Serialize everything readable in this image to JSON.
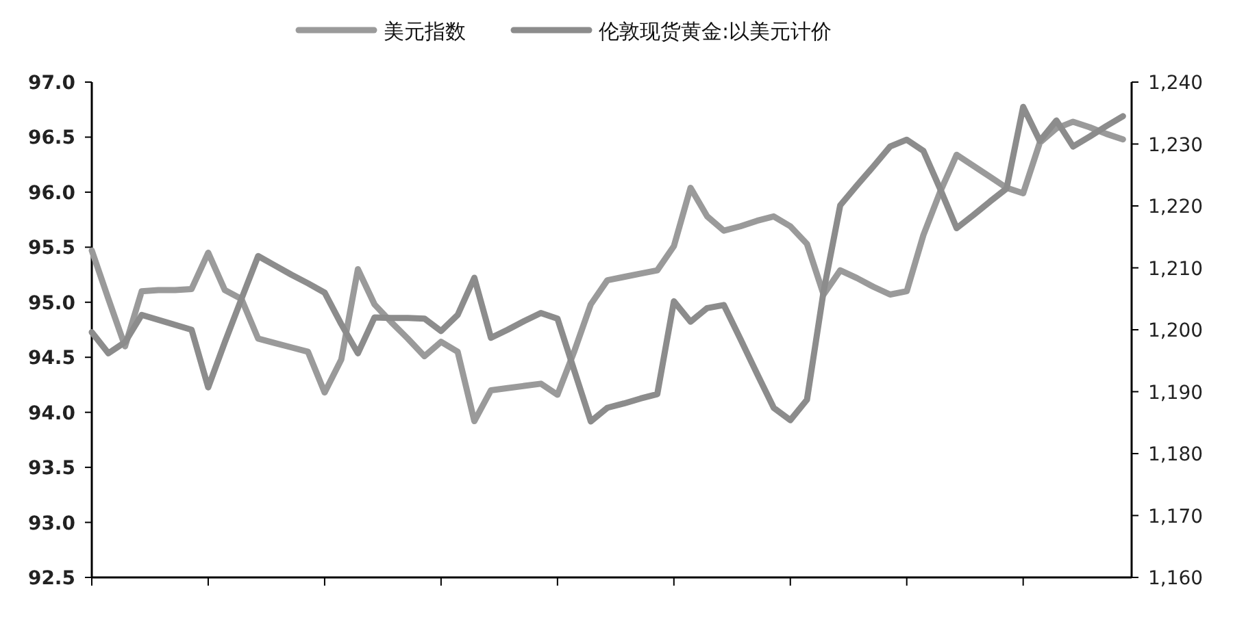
{
  "chart_data": {
    "type": "line",
    "legend": "top",
    "grid": false,
    "categories": [
      null,
      null,
      null,
      null,
      null,
      null,
      null,
      null,
      null,
      null,
      null,
      null,
      null,
      null,
      null,
      null,
      null,
      null,
      null,
      null,
      null,
      null,
      null,
      null,
      null,
      null,
      null,
      null,
      null,
      null,
      null,
      null,
      null,
      null,
      null,
      null,
      null,
      null,
      null,
      null,
      null,
      null,
      null,
      null,
      null,
      null,
      null,
      null,
      null,
      null,
      null,
      null,
      null,
      null,
      null,
      null,
      null,
      null,
      null,
      null,
      null,
      null,
      null
    ],
    "ylim": [
      92.5,
      97.0
    ],
    "yticks": [
      {
        "value": 92.5,
        "label": "92.5"
      },
      {
        "value": 93,
        "label": "93.0"
      },
      {
        "value": 93.5,
        "label": "93.5"
      },
      {
        "value": 94,
        "label": "94.0"
      },
      {
        "value": 94.5,
        "label": "94.5"
      },
      {
        "value": 95,
        "label": "95.0"
      },
      {
        "value": 95.5,
        "label": "95.5"
      },
      {
        "value": 96,
        "label": "96.0"
      },
      {
        "value": 96.5,
        "label": "96.5"
      },
      {
        "value": 97,
        "label": "97.0"
      }
    ],
    "y2lim": [
      1160,
      1240
    ],
    "y2ticks": [
      {
        "value": 1160,
        "label": "1,160"
      },
      {
        "value": 1170,
        "label": "1,170"
      },
      {
        "value": 1180,
        "label": "1,180"
      },
      {
        "value": 1190,
        "label": "1,190"
      },
      {
        "value": 1200,
        "label": "1,200"
      },
      {
        "value": 1210,
        "label": "1,210"
      },
      {
        "value": 1220,
        "label": "1,220"
      },
      {
        "value": 1230,
        "label": "1,230"
      },
      {
        "value": 1240,
        "label": "1,240"
      }
    ],
    "series": [
      {
        "name": "美元指数",
        "color": "#9a9a9a",
        "values": [
          95.47,
          95.03,
          94.6,
          95.1,
          95.11,
          95.11,
          95.12,
          95.45,
          95.11,
          95.03,
          94.67,
          94.63,
          94.59,
          94.55,
          94.18,
          94.48,
          95.3,
          94.98,
          94.82,
          94.67,
          94.51,
          94.64,
          94.55,
          93.92,
          94.2,
          94.22,
          94.24,
          94.26,
          94.16,
          94.55,
          94.98,
          95.2,
          95.23,
          95.26,
          95.29,
          95.51,
          96.04,
          95.78,
          95.65,
          95.69,
          95.74,
          95.78,
          95.69,
          95.53,
          95.07,
          95.29,
          95.22,
          95.14,
          95.07,
          95.1,
          95.61,
          96.0,
          96.34,
          96.24,
          96.14,
          96.04,
          95.99,
          96.45,
          96.58,
          96.64,
          96.59,
          96.53,
          96.48
        ]
      },
      {
        "name": "伦敦现货黄金:以美元计价",
        "color": "#8c8c8c",
        "axis": "y2",
        "values": [
          1199.6,
          1196.2,
          1198,
          1202.4,
          1201.6,
          1200.8,
          1200,
          1190.7,
          1198,
          1205,
          1211.9,
          1210.4,
          1208.9,
          1207.5,
          1206,
          1200.9,
          1196.2,
          1202,
          1201.9,
          1201.9,
          1201.8,
          1199.8,
          1202.4,
          1208.4,
          1198.7,
          1200,
          1201.4,
          1202.7,
          1201.8,
          1193.5,
          1185.2,
          1187.4,
          1188.1,
          1188.9,
          1189.6,
          1204.6,
          1201.3,
          1203.5,
          1204,
          1198.5,
          1192.9,
          1187.4,
          1185.4,
          1188.7,
          1206.2,
          1220.1,
          1223.3,
          1226.4,
          1229.6,
          1230.7,
          1228.9,
          1222.8,
          1216.4,
          1218.5,
          1220.7,
          1222.8,
          1236,
          1230.5,
          1233.8,
          1229.6,
          1231.2,
          1232.9,
          1234.5
        ]
      }
    ]
  }
}
